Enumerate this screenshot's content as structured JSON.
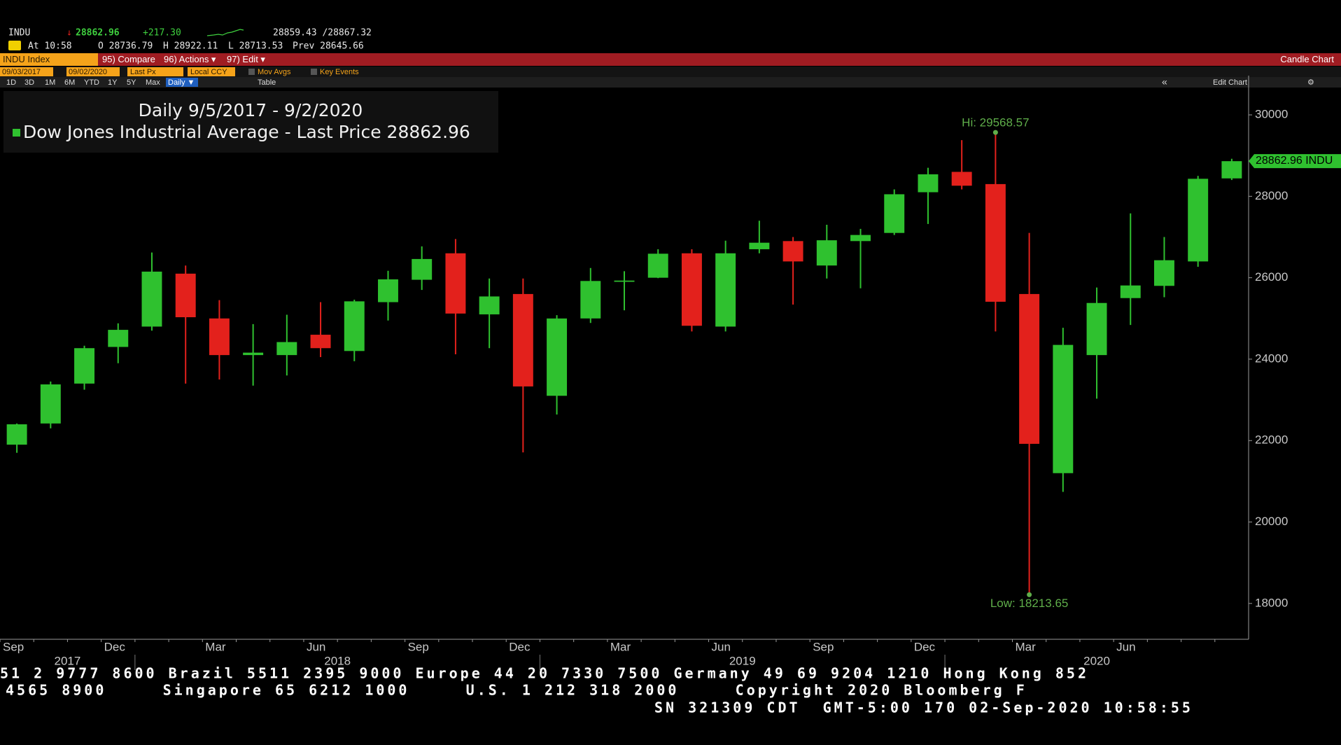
{
  "header": {
    "symbol": "INDU",
    "direction": "↓",
    "last": "28862.96",
    "change": "+217.30",
    "bid_ask": "28859.43 /28867.32",
    "time": "At 10:58",
    "open": "O 28736.79",
    "high": "H 28922.11",
    "low": "L 28713.53",
    "prev": "Prev 28645.66"
  },
  "menu": {
    "security": "INDU Index",
    "compare": "95) Compare",
    "actions": "96) Actions ▾",
    "edit": "97) Edit ▾",
    "chart_type": "Candle Chart"
  },
  "controls": {
    "start_date": "09/03/2017",
    "end_date": "09/02/2020",
    "field": "Last Px",
    "currency": "Local CCY",
    "mov_avgs": "Mov Avgs",
    "key_events": "Key Events",
    "periods": [
      "1D",
      "3D",
      "1M",
      "6M",
      "YTD",
      "1Y",
      "5Y",
      "Max"
    ],
    "frequency": "Daily ▼",
    "table": "Table",
    "collapse": "«",
    "edit_chart": "Edit Chart",
    "settings": "⚙"
  },
  "ticker": [
    "51 2 9777 8600 Brazil 5511 2395 9000 Europe 44 20 7330 7500 Germany 49 69 9204 1210 Hong Kong 852",
    "4565 8900     Singapore 65 6212 1000     U.S. 1 212 318 2000     Copyright 2020 Bloomberg F",
    "SN 321309 CDT  GMT-5:00 170 02-Sep-2020 10:58:55"
  ],
  "chart_data": {
    "type": "candlestick",
    "title": "Daily 9/5/2017 - 9/2/2020",
    "name": "Dow Jones Industrial Average - Last Price",
    "tag_symbol": "INDU",
    "up_color": "#2fc12f",
    "down_color": "#e3211c",
    "legend_color": "#2fc12f",
    "categories": [
      "Sep",
      null,
      null,
      "Dec",
      null,
      null,
      "Mar",
      null,
      null,
      "Jun",
      null,
      null,
      "Sep",
      null,
      null,
      "Dec",
      null,
      null,
      "Mar",
      null,
      null,
      "Jun",
      null,
      null,
      "Sep",
      null,
      null,
      "Dec",
      null,
      null,
      "Mar",
      null,
      null,
      "Jun",
      null,
      null,
      null
    ],
    "years": [
      "2017",
      "2018",
      "2019",
      "2020"
    ],
    "open": [
      21900,
      22420,
      23400,
      24300,
      24800,
      26100,
      25000,
      24100,
      24100,
      24600,
      24200,
      25400,
      25950,
      26600,
      25100,
      25600,
      23100,
      25000,
      25900,
      26000,
      26600,
      24800,
      26700,
      26900,
      26300,
      26900,
      27100,
      28100,
      28600,
      28300,
      25600,
      21200,
      24100,
      25500,
      25800,
      26400,
      28440
    ],
    "high": [
      22420,
      23450,
      24330,
      24880,
      26620,
      26300,
      25450,
      24860,
      25090,
      25400,
      25460,
      26170,
      26770,
      26950,
      25980,
      25980,
      25080,
      26240,
      26160,
      26700,
      26700,
      26910,
      27400,
      27000,
      27300,
      27200,
      28170,
      28700,
      29380,
      29568.57,
      27100,
      24770,
      25760,
      27580,
      27000,
      28500,
      28922
    ],
    "low": [
      21700,
      22300,
      23250,
      23900,
      24700,
      23400,
      23500,
      23350,
      23600,
      24050,
      23950,
      24950,
      25700,
      24120,
      24270,
      21710,
      22640,
      24890,
      25200,
      25990,
      24680,
      24680,
      26600,
      25340,
      25980,
      25740,
      27050,
      27320,
      28170,
      24680,
      18213.65,
      20740,
      23030,
      24840,
      25520,
      26270,
      28400
    ],
    "close": [
      22400,
      23380,
      24270,
      24720,
      26150,
      25030,
      24100,
      24160,
      24420,
      24270,
      25420,
      25960,
      26460,
      25120,
      25540,
      23330,
      24999,
      25920,
      25930,
      26590,
      24820,
      26600,
      26860,
      26400,
      26920,
      27050,
      28050,
      28540,
      28260,
      25410,
      21920,
      24350,
      25380,
      25810,
      26430,
      28430,
      28862.96
    ],
    "hi_label": "Hi: 29568.57",
    "low_label": "Low: 18213.65",
    "annotation_color": "#5fae4a",
    "ylim": [
      17120,
      30620
    ],
    "yticks": [
      18000,
      20000,
      22000,
      24000,
      26000,
      28000,
      30000
    ]
  }
}
